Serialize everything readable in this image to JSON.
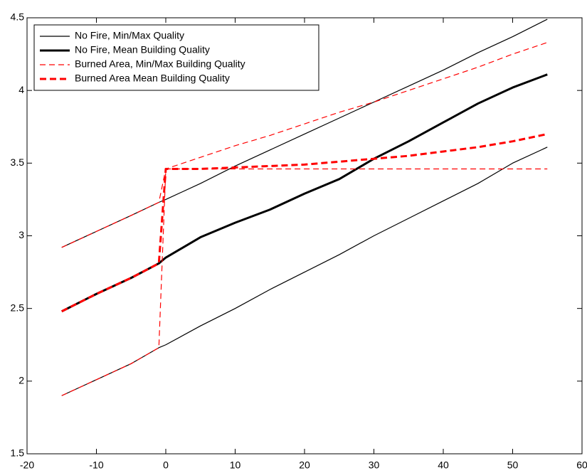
{
  "chart_data": {
    "type": "line",
    "x": [
      -15,
      -10,
      -5,
      -1,
      0,
      5,
      10,
      15,
      20,
      25,
      30,
      35,
      40,
      45,
      50,
      55
    ],
    "series": [
      {
        "name": "No Fire, Min/Max Quality",
        "color": "#000000",
        "style": "solid",
        "width": 1.2,
        "upper": [
          2.92,
          3.03,
          3.14,
          3.23,
          3.25,
          3.36,
          3.48,
          3.59,
          3.7,
          3.81,
          3.92,
          4.03,
          4.14,
          4.26,
          4.37,
          4.49
        ],
        "lower": [
          1.9,
          2.01,
          2.12,
          2.23,
          2.25,
          2.38,
          2.5,
          2.63,
          2.75,
          2.87,
          3.0,
          3.12,
          3.24,
          3.36,
          3.5,
          3.61
        ]
      },
      {
        "name": "No Fire, Mean Building Quality",
        "color": "#000000",
        "style": "solid",
        "width": 3,
        "values": [
          2.48,
          2.6,
          2.71,
          2.81,
          2.85,
          2.99,
          3.09,
          3.18,
          3.29,
          3.39,
          3.53,
          3.65,
          3.78,
          3.91,
          4.02,
          4.11
        ]
      },
      {
        "name": "Burned Area, Min/Max Building Quality",
        "color": "#ff0000",
        "style": "dashed",
        "width": 1.2,
        "upper": [
          2.92,
          3.03,
          3.14,
          3.23,
          3.46,
          3.54,
          3.62,
          3.69,
          3.77,
          3.85,
          3.92,
          4.0,
          4.08,
          4.16,
          4.25,
          4.33
        ],
        "lower": [
          1.9,
          2.01,
          2.12,
          2.23,
          3.46,
          3.46,
          3.46,
          3.46,
          3.46,
          3.46,
          3.46,
          3.46,
          3.46,
          3.46,
          3.46,
          3.46
        ]
      },
      {
        "name": "Burned Area Mean Building Quality",
        "color": "#ff0000",
        "style": "dashed",
        "width": 3,
        "values": [
          2.48,
          2.6,
          2.71,
          2.81,
          3.46,
          3.46,
          3.47,
          3.48,
          3.49,
          3.51,
          3.53,
          3.55,
          3.58,
          3.61,
          3.65,
          3.7
        ]
      }
    ],
    "xlim": [
      -20,
      60
    ],
    "xticks": [
      -20,
      -10,
      0,
      10,
      20,
      30,
      40,
      50,
      60
    ],
    "ylim": [
      1.5,
      4.5
    ],
    "yticks": [
      1.5,
      2,
      2.5,
      3,
      3.5,
      4,
      4.5
    ],
    "grid": false,
    "legend": "upper left"
  }
}
